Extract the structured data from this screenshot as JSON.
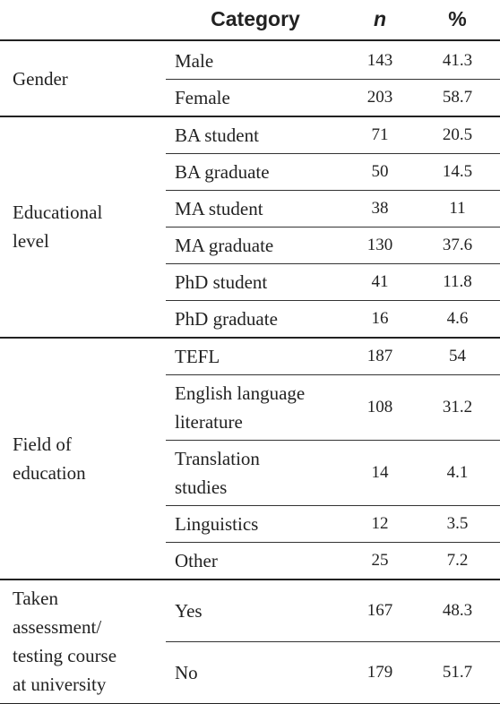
{
  "header": {
    "category": "Category",
    "n": "n",
    "percent": "%"
  },
  "groups": [
    {
      "label": [
        "Gender"
      ],
      "rows": [
        {
          "category": [
            "Male"
          ],
          "n": 143,
          "percent": 41.3
        },
        {
          "category": [
            "Female"
          ],
          "n": 203,
          "percent": 58.7
        }
      ]
    },
    {
      "label": [
        "Educational",
        "level"
      ],
      "rows": [
        {
          "category": [
            "BA student"
          ],
          "n": 71,
          "percent": 20.5
        },
        {
          "category": [
            "BA graduate"
          ],
          "n": 50,
          "percent": 14.5
        },
        {
          "category": [
            "MA student"
          ],
          "n": 38,
          "percent": 11
        },
        {
          "category": [
            "MA graduate"
          ],
          "n": 130,
          "percent": 37.6
        },
        {
          "category": [
            "PhD student"
          ],
          "n": 41,
          "percent": 11.8
        },
        {
          "category": [
            "PhD graduate"
          ],
          "n": 16,
          "percent": 4.6
        }
      ]
    },
    {
      "label": [
        "Field of",
        "education"
      ],
      "rows": [
        {
          "category": [
            "TEFL"
          ],
          "n": 187,
          "percent": 54
        },
        {
          "category": [
            "English language",
            "literature"
          ],
          "n": 108,
          "percent": 31.2
        },
        {
          "category": [
            "Translation",
            "studies"
          ],
          "n": 14,
          "percent": 4.1
        },
        {
          "category": [
            "Linguistics"
          ],
          "n": 12,
          "percent": 3.5
        },
        {
          "category": [
            "Other"
          ],
          "n": 25,
          "percent": 7.2
        }
      ]
    },
    {
      "label": [
        "Taken",
        "assessment/",
        "testing course",
        "at university"
      ],
      "rows": [
        {
          "category": [
            "Yes"
          ],
          "n": 167,
          "percent": 48.3
        },
        {
          "category": [
            "No"
          ],
          "n": 179,
          "percent": 51.7
        }
      ]
    }
  ]
}
